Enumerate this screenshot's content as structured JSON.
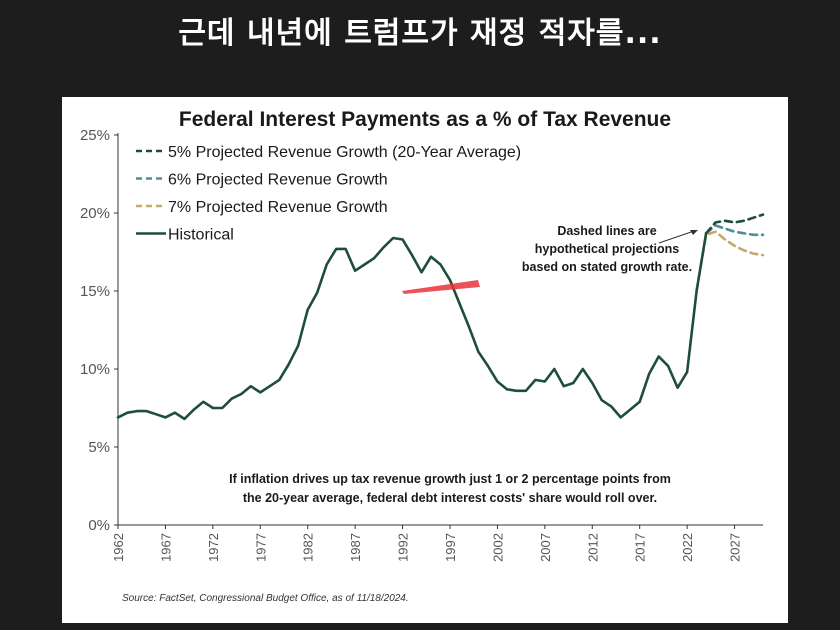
{
  "video_caption": "근데 내년에 트럼프가 재정 적자를...",
  "chart_data": {
    "type": "line",
    "title": "Federal Interest Payments as a % of Tax Revenue",
    "xlabel": "",
    "ylabel": "",
    "ylim": [
      0,
      25
    ],
    "xlim": [
      1962,
      2030
    ],
    "y_ticks": [
      "0%",
      "5%",
      "10%",
      "15%",
      "20%",
      "25%"
    ],
    "x_ticks": [
      "1962",
      "1967",
      "1972",
      "1977",
      "1982",
      "1987",
      "1992",
      "1997",
      "2002",
      "2007",
      "2012",
      "2017",
      "2022",
      "2027"
    ],
    "legend": [
      "5% Projected Revenue Growth (20-Year Average)",
      "6% Projected Revenue Growth",
      "7% Projected Revenue Growth",
      "Historical"
    ],
    "series": [
      {
        "name": "Historical",
        "color": "#1e4d3e",
        "dash": false,
        "x": [
          1962,
          1963,
          1964,
          1965,
          1966,
          1967,
          1968,
          1969,
          1970,
          1971,
          1972,
          1973,
          1974,
          1975,
          1976,
          1977,
          1978,
          1979,
          1980,
          1981,
          1982,
          1983,
          1984,
          1985,
          1986,
          1987,
          1988,
          1989,
          1990,
          1991,
          1992,
          1993,
          1994,
          1995,
          1996,
          1997,
          1998,
          1999,
          2000,
          2001,
          2002,
          2003,
          2004,
          2005,
          2006,
          2007,
          2008,
          2009,
          2010,
          2011,
          2012,
          2013,
          2014,
          2015,
          2016,
          2017,
          2018,
          2019,
          2020,
          2021,
          2022,
          2023,
          2024
        ],
        "values": [
          6.9,
          7.2,
          7.3,
          7.3,
          7.1,
          6.9,
          7.2,
          6.8,
          7.4,
          7.9,
          7.5,
          7.5,
          8.1,
          8.4,
          8.9,
          8.5,
          8.9,
          9.3,
          10.3,
          11.5,
          13.8,
          14.9,
          16.7,
          17.7,
          17.7,
          16.3,
          16.7,
          17.1,
          17.8,
          18.4,
          18.3,
          17.3,
          16.2,
          17.2,
          16.7,
          15.7,
          14.2,
          12.7,
          11.1,
          10.2,
          9.2,
          8.7,
          8.6,
          8.6,
          9.3,
          9.2,
          10.0,
          8.9,
          9.1,
          10.0,
          9.1,
          8.0,
          7.6,
          6.9,
          7.4,
          7.9,
          9.7,
          10.8,
          10.2,
          8.8,
          9.8,
          15.0,
          18.7
        ]
      },
      {
        "name": "5% Projected Revenue Growth (20-Year Average)",
        "color": "#1e4d3e",
        "dash": true,
        "x": [
          2024,
          2025,
          2026,
          2027,
          2028,
          2029,
          2030
        ],
        "values": [
          18.7,
          19.4,
          19.5,
          19.4,
          19.5,
          19.7,
          19.9
        ]
      },
      {
        "name": "6% Projected Revenue Growth",
        "color": "#4e8f96",
        "dash": true,
        "x": [
          2024,
          2025,
          2026,
          2027,
          2028,
          2029,
          2030
        ],
        "values": [
          18.7,
          19.2,
          19.0,
          18.8,
          18.7,
          18.6,
          18.6
        ]
      },
      {
        "name": "7% Projected Revenue Growth",
        "color": "#c7a86b",
        "dash": true,
        "x": [
          2023,
          2024,
          2025,
          2026,
          2027,
          2028,
          2029,
          2030
        ],
        "values": [
          15.0,
          18.6,
          18.8,
          18.3,
          17.9,
          17.6,
          17.4,
          17.3
        ]
      }
    ],
    "annotations": {
      "dashed_note": [
        "Dashed lines are",
        "hypothetical projections",
        "based on stated growth rate."
      ],
      "inflation_note": [
        "If inflation drives up tax revenue growth just 1 or 2 percentage points from",
        "the 20-year average, federal debt interest costs' share would roll over."
      ],
      "source": "Source: FactSet, Congressional Budget Office, as of 11/18/2024."
    }
  }
}
